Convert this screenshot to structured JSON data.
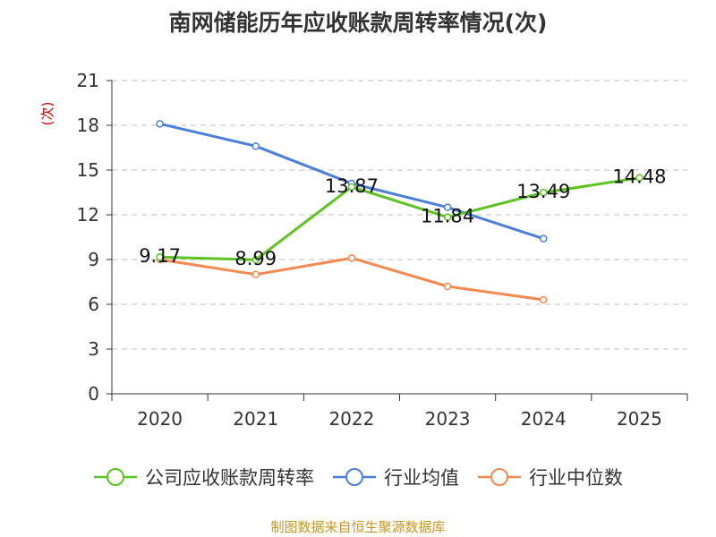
{
  "chart_data": {
    "type": "line",
    "title": "南网储能历年应收账款周转率情况(次)",
    "ylabel": "(次)",
    "categories": [
      "2020",
      "2021",
      "2022",
      "2023",
      "2024",
      "2025"
    ],
    "ylim": [
      0,
      21
    ],
    "yticks": [
      0,
      3,
      6,
      9,
      12,
      15,
      18,
      21
    ],
    "series": [
      {
        "name": "公司应收账款周转率",
        "color": "#5cc421",
        "values": [
          9.17,
          8.99,
          13.87,
          11.84,
          13.49,
          14.48
        ],
        "labels": [
          "9.17",
          "8.99",
          "13.87",
          "11.84",
          "13.49",
          "14.48"
        ]
      },
      {
        "name": "行业均值",
        "color": "#4a7fde",
        "values": [
          18.1,
          16.6,
          14.1,
          12.5,
          10.4,
          null
        ]
      },
      {
        "name": "行业中位数",
        "color": "#f5894f",
        "values": [
          9.0,
          8.0,
          9.1,
          7.2,
          6.3,
          null
        ]
      }
    ]
  },
  "source": "制图数据来自恒生聚源数据库"
}
